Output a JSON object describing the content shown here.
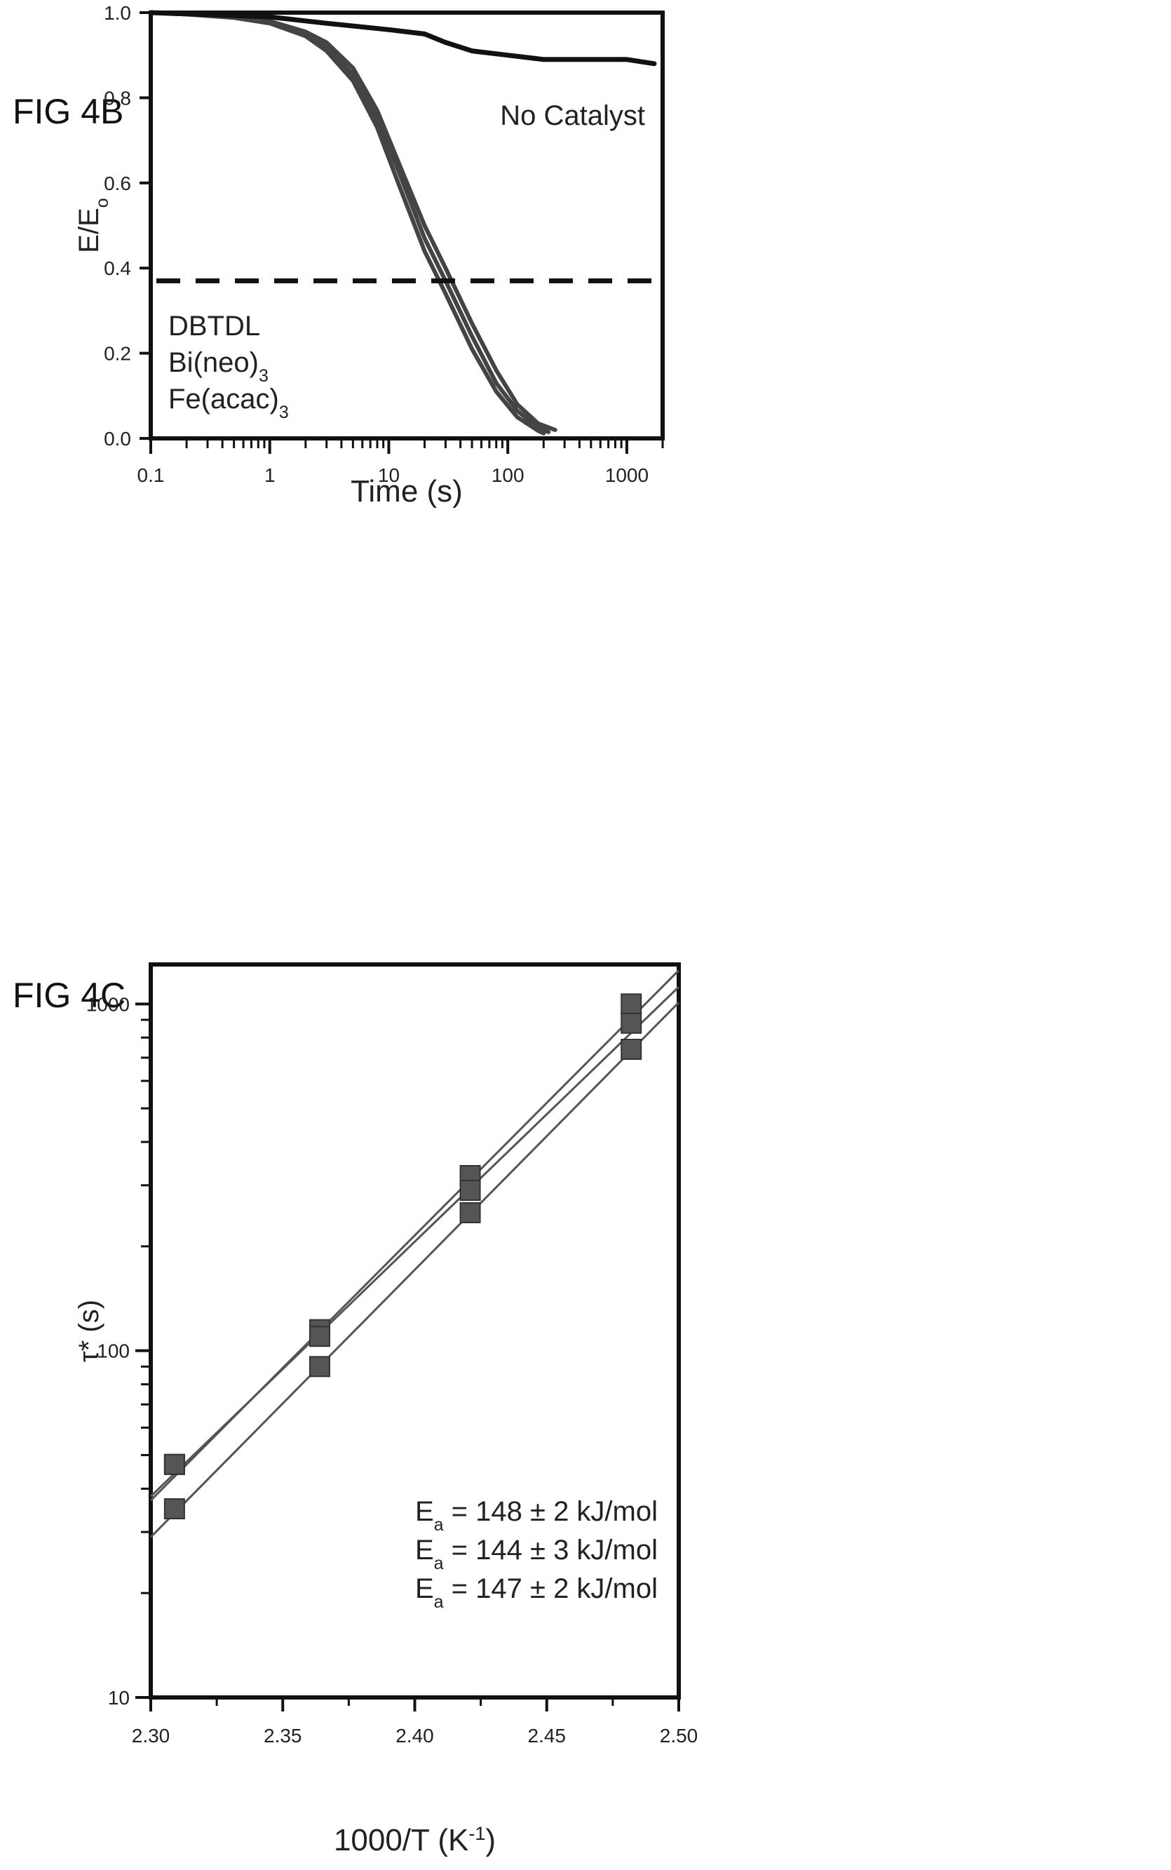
{
  "figures": {
    "b_label": "FIG 4B",
    "c_label": "FIG 4C"
  },
  "chart_data": [
    {
      "type": "line",
      "x_scale": "log",
      "xlim": [
        0.1,
        2000
      ],
      "ylim": [
        0.0,
        1.0
      ],
      "xlabel": "Time (s)",
      "ylabel": "E/E",
      "ylabel_sub": "o",
      "x_ticks": [
        {
          "v": 0.1,
          "label": "0.1"
        },
        {
          "v": 1,
          "label": "1"
        },
        {
          "v": 10,
          "label": "10"
        },
        {
          "v": 100,
          "label": "100"
        },
        {
          "v": 1000,
          "label": "1000"
        }
      ],
      "y_ticks": [
        {
          "v": 0.0,
          "label": "0.0"
        },
        {
          "v": 0.2,
          "label": "0.2"
        },
        {
          "v": 0.4,
          "label": "0.4"
        },
        {
          "v": 0.6,
          "label": "0.6"
        },
        {
          "v": 0.8,
          "label": "0.8"
        },
        {
          "v": 1.0,
          "label": "1.0"
        }
      ],
      "threshold_line": {
        "y": 0.37,
        "style": "dashed"
      },
      "annotation": "No Catalyst",
      "legend": [
        {
          "text": "DBTDL",
          "sub": ""
        },
        {
          "text": "Bi(neo)",
          "sub": "3"
        },
        {
          "text": "Fe(acac)",
          "sub": "3"
        }
      ],
      "series": [
        {
          "x": [
            0.1,
            0.2,
            0.5,
            1,
            2,
            3,
            5,
            8,
            12,
            20,
            30,
            50,
            80,
            120,
            180,
            250
          ],
          "y": [
            1.0,
            0.997,
            0.99,
            0.98,
            0.955,
            0.93,
            0.87,
            0.77,
            0.65,
            0.5,
            0.4,
            0.27,
            0.16,
            0.08,
            0.035,
            0.02
          ]
        },
        {
          "x": [
            0.1,
            0.2,
            0.5,
            1,
            2,
            3,
            5,
            8,
            12,
            20,
            30,
            50,
            80,
            120,
            180,
            220
          ],
          "y": [
            1.0,
            0.997,
            0.99,
            0.978,
            0.95,
            0.92,
            0.855,
            0.75,
            0.63,
            0.47,
            0.37,
            0.24,
            0.13,
            0.065,
            0.025,
            0.015
          ]
        },
        {
          "x": [
            0.1,
            0.2,
            0.5,
            1,
            2,
            3,
            5,
            8,
            12,
            20,
            30,
            50,
            80,
            120,
            180,
            200
          ],
          "y": [
            1.0,
            0.996,
            0.988,
            0.975,
            0.945,
            0.91,
            0.84,
            0.73,
            0.6,
            0.44,
            0.34,
            0.21,
            0.11,
            0.05,
            0.018,
            0.012
          ]
        },
        {
          "x": [
            0.1,
            1,
            3,
            10,
            20,
            30,
            50,
            100,
            200,
            500,
            1000,
            1700
          ],
          "y": [
            1.0,
            0.99,
            0.975,
            0.96,
            0.95,
            0.93,
            0.91,
            0.9,
            0.89,
            0.89,
            0.89,
            0.88
          ]
        }
      ]
    },
    {
      "type": "scatter",
      "y_scale": "log",
      "xlim": [
        2.3,
        2.5
      ],
      "ylim": [
        10,
        1300
      ],
      "xlabel": "1000/T (K",
      "xlabel_sup": "-1",
      "xlabel_end": ")",
      "ylabel": "τ* (s)",
      "x_ticks": [
        {
          "v": 2.3,
          "label": "2.30"
        },
        {
          "v": 2.35,
          "label": "2.35"
        },
        {
          "v": 2.4,
          "label": "2.40"
        },
        {
          "v": 2.45,
          "label": "2.45"
        },
        {
          "v": 2.5,
          "label": "2.50"
        }
      ],
      "y_ticks": [
        {
          "v": 10,
          "label": "10"
        },
        {
          "v": 100,
          "label": "100"
        },
        {
          "v": 1000,
          "label": "1000"
        }
      ],
      "annotations": [
        {
          "pre": "E",
          "sub": "a",
          "post": " = 148 ± 2 kJ/mol"
        },
        {
          "pre": "E",
          "sub": "a",
          "post": " = 144 ± 3 kJ/mol"
        },
        {
          "pre": "E",
          "sub": "a",
          "post": " = 147 ± 2 kJ/mol"
        }
      ],
      "series": [
        {
          "x": [
            2.309,
            2.364,
            2.421,
            2.482
          ],
          "y": [
            47,
            115,
            320,
            1000
          ]
        },
        {
          "x": [
            2.309,
            2.364,
            2.421,
            2.482
          ],
          "y": [
            47,
            110,
            290,
            880
          ]
        },
        {
          "x": [
            2.309,
            2.364,
            2.421,
            2.482
          ],
          "y": [
            35,
            90,
            250,
            740
          ]
        }
      ],
      "fits": [
        {
          "x": [
            2.3,
            2.5
          ],
          "y": [
            37,
            1250
          ]
        },
        {
          "x": [
            2.3,
            2.5
          ],
          "y": [
            38,
            1120
          ]
        },
        {
          "x": [
            2.3,
            2.5
          ],
          "y": [
            29,
            1010
          ]
        }
      ]
    }
  ]
}
